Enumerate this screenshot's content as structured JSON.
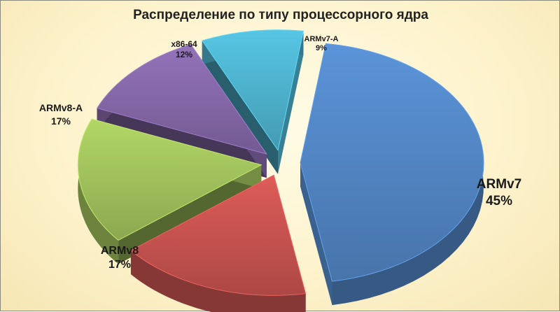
{
  "chart_data": {
    "type": "pie",
    "title": "Распределение по типу процессорного ядра",
    "categories": [
      "ARMv7",
      "ARMv8",
      "ARMv8-A",
      "x86-64",
      "ARMv7-A"
    ],
    "values": [
      45,
      17,
      17,
      12,
      9
    ],
    "labels": [
      "45%",
      "17%",
      "17%",
      "12%",
      "9%"
    ],
    "colors": [
      "#4f81bd",
      "#c0504d",
      "#9bbb59",
      "#8064a2",
      "#4bacc6"
    ],
    "exploded": true,
    "style": "3d"
  }
}
